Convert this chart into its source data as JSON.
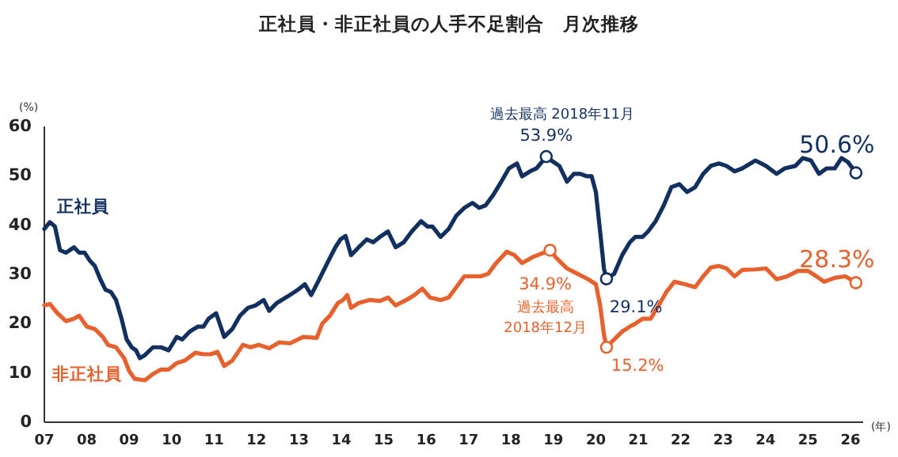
{
  "chart_data": {
    "type": "line",
    "title": "正社員・非正社員の人手不足割合　月次推移",
    "ylabel": "(%)",
    "xlabel": "(年)",
    "xlim": [
      7,
      26.3
    ],
    "ylim": [
      0,
      60
    ],
    "yticks": [
      0,
      10,
      20,
      30,
      40,
      50,
      60
    ],
    "xticks": [
      {
        "value": 7,
        "label": "07"
      },
      {
        "value": 8,
        "label": "08"
      },
      {
        "value": 9,
        "label": "09"
      },
      {
        "value": 10,
        "label": "10"
      },
      {
        "value": 11,
        "label": "11"
      },
      {
        "value": 12,
        "label": "12"
      },
      {
        "value": 13,
        "label": "13"
      },
      {
        "value": 14,
        "label": "14"
      },
      {
        "value": 15,
        "label": "15"
      },
      {
        "value": 16,
        "label": "16"
      },
      {
        "value": 17,
        "label": "17"
      },
      {
        "value": 18,
        "label": "18"
      },
      {
        "value": 19,
        "label": "19"
      },
      {
        "value": 20,
        "label": "20"
      },
      {
        "value": 21,
        "label": "21"
      },
      {
        "value": 22,
        "label": "22"
      },
      {
        "value": 23,
        "label": "23"
      },
      {
        "value": 24,
        "label": "24"
      },
      {
        "value": 25,
        "label": "25"
      },
      {
        "value": 26,
        "label": "26"
      }
    ],
    "legend": false,
    "grid": false,
    "series": [
      {
        "name": "正社員",
        "color": "#12305f",
        "x": [
          7.0,
          7.13,
          7.25,
          7.37,
          7.51,
          7.7,
          7.82,
          7.95,
          8.07,
          8.19,
          8.32,
          8.44,
          8.57,
          8.69,
          8.82,
          8.94,
          9.06,
          9.16,
          9.25,
          9.37,
          9.56,
          9.75,
          9.93,
          10.12,
          10.25,
          10.43,
          10.62,
          10.75,
          10.87,
          11.05,
          11.24,
          11.43,
          11.61,
          11.8,
          11.98,
          12.17,
          12.3,
          12.48,
          12.73,
          12.98,
          13.14,
          13.29,
          13.48,
          13.67,
          13.86,
          13.98,
          14.1,
          14.23,
          14.41,
          14.6,
          14.75,
          14.91,
          15.1,
          15.28,
          15.47,
          15.66,
          15.88,
          16.03,
          16.15,
          16.34,
          16.53,
          16.71,
          16.9,
          17.09,
          17.25,
          17.4,
          17.58,
          17.77,
          17.95,
          18.14,
          18.26,
          18.45,
          18.6,
          18.83,
          18.95,
          19.14,
          19.32,
          19.48,
          19.63,
          19.79,
          19.9,
          20.0,
          20.1,
          20.19,
          20.25,
          20.43,
          20.62,
          20.8,
          20.93,
          21.1,
          21.23,
          21.41,
          21.6,
          21.78,
          21.97,
          22.15,
          22.34,
          22.53,
          22.71,
          22.9,
          23.08,
          23.27,
          23.45,
          23.76,
          24.01,
          24.26,
          24.45,
          24.7,
          24.88,
          25.07,
          25.26,
          25.44,
          25.63,
          25.79,
          25.94,
          26.13
        ],
        "values": [
          39.2,
          40.6,
          39.7,
          34.9,
          34.4,
          35.5,
          34.4,
          34.4,
          32.8,
          31.7,
          29.0,
          26.9,
          26.4,
          24.8,
          21.0,
          16.8,
          15.2,
          14.6,
          13.0,
          13.6,
          15.2,
          15.2,
          14.6,
          17.3,
          16.8,
          18.4,
          19.4,
          19.4,
          21.0,
          22.1,
          17.3,
          18.9,
          21.6,
          23.2,
          23.7,
          24.8,
          22.6,
          24.2,
          25.5,
          26.9,
          28.0,
          25.8,
          29.0,
          32.3,
          35.5,
          37.1,
          37.8,
          33.9,
          35.5,
          37.1,
          36.5,
          37.6,
          38.7,
          35.5,
          36.5,
          38.7,
          40.8,
          39.7,
          39.7,
          37.6,
          39.2,
          41.9,
          43.5,
          44.5,
          43.5,
          44.0,
          46.1,
          48.8,
          51.5,
          52.5,
          49.9,
          50.9,
          51.5,
          53.9,
          53.1,
          52.0,
          48.8,
          50.4,
          50.4,
          49.9,
          49.9,
          46.7,
          38.7,
          31.2,
          29.1,
          30.1,
          33.9,
          36.5,
          37.6,
          37.6,
          38.7,
          40.8,
          44.0,
          47.7,
          48.3,
          46.7,
          47.7,
          50.4,
          52.0,
          52.5,
          52.0,
          50.9,
          51.5,
          53.1,
          52.0,
          50.4,
          51.5,
          52.0,
          53.6,
          53.1,
          50.4,
          51.5,
          51.5,
          53.6,
          52.8,
          50.6
        ]
      },
      {
        "name": "非正社員",
        "color": "#e8612c",
        "x": [
          7.0,
          7.13,
          7.31,
          7.51,
          7.7,
          7.82,
          8.0,
          8.19,
          8.38,
          8.5,
          8.69,
          8.88,
          9.0,
          9.13,
          9.37,
          9.56,
          9.75,
          9.93,
          10.12,
          10.31,
          10.56,
          10.75,
          10.93,
          11.08,
          11.24,
          11.43,
          11.68,
          11.86,
          12.05,
          12.3,
          12.54,
          12.79,
          13.1,
          13.42,
          13.55,
          13.73,
          13.92,
          14.04,
          14.14,
          14.23,
          14.41,
          14.66,
          14.91,
          15.1,
          15.28,
          15.53,
          15.72,
          15.91,
          16.09,
          16.34,
          16.53,
          16.71,
          16.9,
          17.09,
          17.28,
          17.46,
          17.65,
          17.9,
          18.08,
          18.26,
          18.51,
          18.92,
          19.07,
          19.32,
          19.57,
          19.82,
          20.0,
          20.1,
          20.19,
          20.25,
          20.43,
          20.62,
          20.8,
          20.93,
          21.1,
          21.29,
          21.48,
          21.66,
          21.85,
          22.1,
          22.34,
          22.53,
          22.71,
          22.9,
          23.08,
          23.27,
          23.45,
          23.76,
          24.01,
          24.26,
          24.51,
          24.76,
          25.0,
          25.2,
          25.38,
          25.63,
          25.88,
          26.13
        ],
        "values": [
          23.7,
          24.0,
          22.1,
          20.5,
          21.0,
          21.6,
          19.4,
          18.9,
          17.3,
          15.7,
          15.2,
          13.0,
          10.4,
          8.8,
          8.5,
          9.8,
          10.7,
          10.7,
          12.0,
          12.5,
          14.1,
          13.8,
          13.8,
          14.3,
          11.4,
          12.5,
          15.7,
          15.2,
          15.7,
          15.0,
          16.2,
          16.0,
          17.3,
          17.1,
          20.0,
          21.6,
          24.2,
          24.8,
          25.8,
          23.2,
          24.2,
          24.8,
          24.6,
          25.3,
          23.7,
          24.8,
          25.8,
          27.1,
          25.3,
          24.8,
          25.3,
          27.4,
          29.6,
          29.6,
          29.6,
          30.1,
          32.3,
          34.6,
          33.9,
          32.3,
          33.5,
          34.9,
          33.3,
          31.2,
          30.1,
          29.0,
          28.0,
          23.7,
          17.8,
          15.2,
          16.8,
          18.4,
          19.4,
          20.0,
          21.0,
          21.0,
          23.7,
          26.4,
          28.5,
          28.0,
          27.4,
          29.6,
          31.4,
          31.7,
          31.2,
          29.6,
          30.9,
          31.0,
          31.2,
          29.0,
          29.6,
          30.7,
          30.7,
          29.6,
          28.5,
          29.3,
          29.6,
          28.3
        ]
      }
    ],
    "annotations": [
      {
        "text": "過去最高 2018年11月",
        "x": 18.83,
        "y": 53.9
      },
      {
        "text": "53.9%",
        "x": 18.83,
        "y": 53.9
      },
      {
        "text": "29.1%",
        "x": 20.25,
        "y": 29.1
      },
      {
        "text": "50.6%",
        "x": 26.13,
        "y": 50.6
      },
      {
        "text": "34.9%",
        "x": 18.92,
        "y": 34.9
      },
      "過去最高",
      "2018年12月",
      {
        "text": "15.2%",
        "x": 20.25,
        "y": 15.2
      },
      {
        "text": "28.3%",
        "x": 26.13,
        "y": 28.3
      }
    ]
  }
}
